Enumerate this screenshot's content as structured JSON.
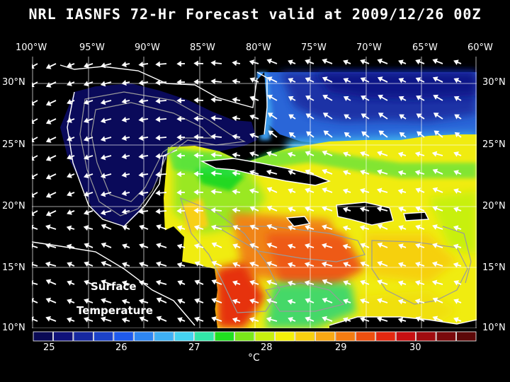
{
  "title": "NRL IASNFS  72-Hr Forecast valid at 2009/12/26 00Z",
  "top_axis": [
    "100°W",
    "95°W",
    "90°W",
    "85°W",
    "80°W",
    "75°W",
    "70°W",
    "65°W",
    "60°W"
  ],
  "left_axis": [
    "30°N",
    "25°N",
    "20°N",
    "15°N",
    "10°N"
  ],
  "right_axis": [
    "30°N",
    "25°N",
    "20°N",
    "15°N",
    "10°N"
  ],
  "overlay": {
    "line1": "Surface",
    "line2": "Temperature"
  },
  "colorbar": {
    "ticks": [
      "25",
      "26",
      "27",
      "28",
      "29",
      "30"
    ],
    "unit": "°C",
    "colors": [
      "#0a0a55",
      "#10127a",
      "#1628a0",
      "#1c42c8",
      "#1f5aec",
      "#2e86f2",
      "#3fb0f4",
      "#45d2f0",
      "#32e6a8",
      "#20e020",
      "#7ae81a",
      "#c8f00f",
      "#f4f00a",
      "#f8d010",
      "#f8a814",
      "#f47c12",
      "#ee5010",
      "#e42810",
      "#c81012",
      "#a00c10",
      "#7a0a0c",
      "#5c0808"
    ]
  }
}
